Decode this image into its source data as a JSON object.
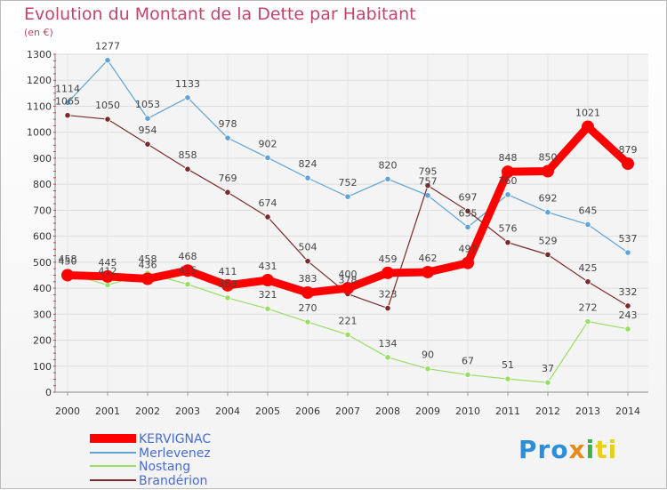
{
  "title": "Evolution du Montant de la Dette par Habitant",
  "subtitle": "(en €)",
  "logo": "Proxiti",
  "chart_data": {
    "type": "line",
    "title": "Evolution du Montant de la Dette par Habitant",
    "ylabel": "(en €)",
    "xlabel": "",
    "x": [
      "2000",
      "2001",
      "2002",
      "2003",
      "2004",
      "2005",
      "2006",
      "2007",
      "2008",
      "2009",
      "2010",
      "2011",
      "2012",
      "2013",
      "2014"
    ],
    "ylim": [
      0,
      1300
    ],
    "yticks": [
      0,
      100,
      200,
      300,
      400,
      500,
      600,
      700,
      800,
      900,
      1000,
      1100,
      1200,
      1300
    ],
    "grid": true,
    "legend_position": "bottom-left",
    "series": [
      {
        "name": "KERVIGNAC",
        "color": "#ff0000",
        "values": [
          450,
          445,
          436,
          468,
          411,
          431,
          383,
          400,
          459,
          462,
          497,
          848,
          850,
          1021,
          879
        ]
      },
      {
        "name": "Merlevenez",
        "color": "#5fa3d8",
        "values": [
          1114,
          1277,
          1053,
          1133,
          978,
          902,
          824,
          752,
          820,
          757,
          635,
          760,
          692,
          645,
          537
        ]
      },
      {
        "name": "Nostang",
        "color": "#99dd66",
        "values": [
          458,
          412,
          458,
          415,
          363,
          321,
          270,
          221,
          134,
          90,
          67,
          51,
          37,
          272,
          243
        ]
      },
      {
        "name": "Brandérion",
        "color": "#7a2a2a",
        "values": [
          1065,
          1050,
          954,
          858,
          769,
          674,
          504,
          378,
          323,
          795,
          697,
          576,
          529,
          425,
          332
        ]
      }
    ]
  }
}
